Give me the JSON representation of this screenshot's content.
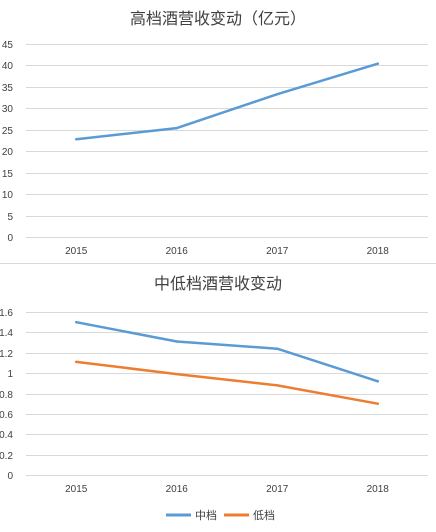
{
  "chart_data": [
    {
      "type": "line",
      "title": "高档酒营收变动（亿元）",
      "categories": [
        "2015",
        "2016",
        "2017",
        "2018"
      ],
      "series": [
        {
          "color": "#5b9bd5",
          "values": [
            22.8,
            25.4,
            33.3,
            40.4
          ]
        }
      ],
      "ylim": [
        0,
        45
      ],
      "yticks": [
        "0",
        "5",
        "10",
        "15",
        "20",
        "25",
        "30",
        "35",
        "40",
        "45"
      ],
      "grid": true,
      "legend": "none"
    },
    {
      "type": "line",
      "title": "中低档酒营收变动",
      "categories": [
        "2015",
        "2016",
        "2017",
        "2018"
      ],
      "series": [
        {
          "name": "中档",
          "color": "#5b9bd5",
          "values": [
            1.5,
            1.31,
            1.24,
            0.92
          ]
        },
        {
          "name": "低档",
          "color": "#ed7d31",
          "values": [
            1.11,
            0.99,
            0.88,
            0.7
          ]
        }
      ],
      "ylim": [
        0,
        1.6
      ],
      "yticks": [
        "0",
        "0.2",
        "0.4",
        "0.6",
        "0.8",
        "1",
        "1.2",
        "1.4",
        "1.6"
      ],
      "grid": true,
      "legend": "bottom"
    }
  ]
}
